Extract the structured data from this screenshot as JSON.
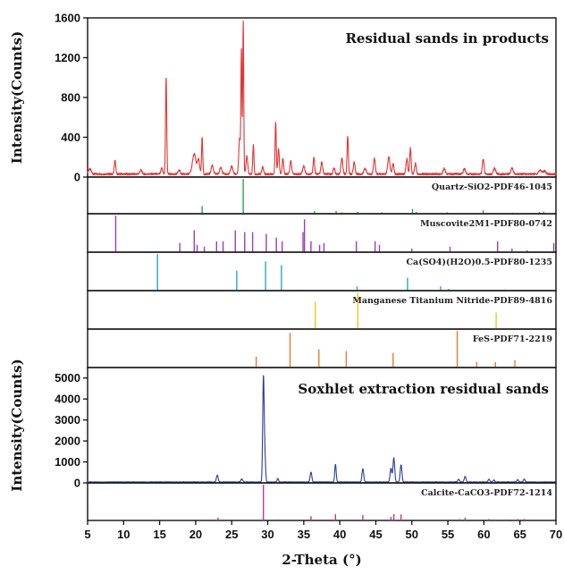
{
  "chart_data": {
    "type": "line",
    "xlabel": "2-Theta (°)",
    "xlim": [
      5,
      70
    ],
    "x_ticks": [
      5,
      10,
      15,
      20,
      25,
      30,
      35,
      40,
      45,
      50,
      55,
      60,
      65,
      70
    ],
    "top": {
      "title": "Residual sands in products",
      "ylabel": "Intensity(Counts)",
      "ylim": [
        0,
        1600
      ],
      "y_ticks": [
        0,
        400,
        800,
        1200,
        1600
      ],
      "color": "#e03535",
      "baseline": 30,
      "peaks": [
        [
          5.3,
          50,
          0.2
        ],
        [
          8.8,
          140,
          0.1
        ],
        [
          12.4,
          40,
          0.15
        ],
        [
          15.3,
          60,
          0.12
        ],
        [
          15.9,
          980,
          0.08
        ],
        [
          17.7,
          40,
          0.15
        ],
        [
          19.8,
          200,
          0.25
        ],
        [
          20.4,
          140,
          0.15
        ],
        [
          20.9,
          370,
          0.08
        ],
        [
          22.3,
          90,
          0.15
        ],
        [
          23.5,
          70,
          0.15
        ],
        [
          25.0,
          80,
          0.15
        ],
        [
          26.1,
          360,
          0.12
        ],
        [
          26.35,
          1240,
          0.07
        ],
        [
          26.6,
          1530,
          0.07
        ],
        [
          27.1,
          180,
          0.12
        ],
        [
          28.0,
          300,
          0.08
        ],
        [
          29.3,
          70,
          0.12
        ],
        [
          31.1,
          530,
          0.08
        ],
        [
          31.5,
          260,
          0.1
        ],
        [
          32.1,
          160,
          0.1
        ],
        [
          33.2,
          130,
          0.12
        ],
        [
          35.0,
          80,
          0.15
        ],
        [
          36.4,
          170,
          0.1
        ],
        [
          37.5,
          120,
          0.12
        ],
        [
          39.2,
          60,
          0.12
        ],
        [
          40.3,
          160,
          0.12
        ],
        [
          41.1,
          380,
          0.09
        ],
        [
          42.0,
          120,
          0.12
        ],
        [
          43.5,
          60,
          0.15
        ],
        [
          44.8,
          160,
          0.12
        ],
        [
          46.8,
          170,
          0.15
        ],
        [
          47.4,
          100,
          0.12
        ],
        [
          49.3,
          150,
          0.12
        ],
        [
          49.8,
          260,
          0.1
        ],
        [
          50.5,
          110,
          0.12
        ],
        [
          54.5,
          60,
          0.15
        ],
        [
          57.3,
          50,
          0.15
        ],
        [
          59.9,
          150,
          0.12
        ],
        [
          61.5,
          60,
          0.15
        ],
        [
          63.9,
          60,
          0.15
        ],
        [
          67.8,
          40,
          0.2
        ],
        [
          68.4,
          30,
          0.2
        ]
      ]
    },
    "references": [
      {
        "name": "Quartz-SiO2-PDF46-1045",
        "color": "#2aa84a",
        "sticks": [
          [
            20.9,
            0.22
          ],
          [
            26.6,
            1.0
          ],
          [
            36.5,
            0.08
          ],
          [
            39.5,
            0.08
          ],
          [
            40.3,
            0.04
          ],
          [
            42.5,
            0.06
          ],
          [
            45.8,
            0.04
          ],
          [
            50.1,
            0.14
          ],
          [
            50.6,
            0.05
          ],
          [
            54.9,
            0.04
          ],
          [
            59.9,
            0.1
          ],
          [
            64.0,
            0.03
          ],
          [
            67.7,
            0.05
          ],
          [
            68.3,
            0.06
          ]
        ]
      },
      {
        "name": "Muscovite2M1-PDF80-0742",
        "color": "#9b3fb5",
        "sticks": [
          [
            8.9,
            1.0
          ],
          [
            17.8,
            0.25
          ],
          [
            19.8,
            0.6
          ],
          [
            20.2,
            0.2
          ],
          [
            21.2,
            0.15
          ],
          [
            22.9,
            0.3
          ],
          [
            23.8,
            0.3
          ],
          [
            25.5,
            0.6
          ],
          [
            26.8,
            0.55
          ],
          [
            27.9,
            0.55
          ],
          [
            29.8,
            0.5
          ],
          [
            31.2,
            0.4
          ],
          [
            32.0,
            0.3
          ],
          [
            34.9,
            0.55
          ],
          [
            35.1,
            0.9
          ],
          [
            36.0,
            0.3
          ],
          [
            37.2,
            0.2
          ],
          [
            37.8,
            0.25
          ],
          [
            42.3,
            0.3
          ],
          [
            44.9,
            0.3
          ],
          [
            45.5,
            0.2
          ],
          [
            50.0,
            0.1
          ],
          [
            55.3,
            0.15
          ],
          [
            61.9,
            0.3
          ],
          [
            63.9,
            0.1
          ],
          [
            66.0,
            0.05
          ],
          [
            69.7,
            0.25
          ]
        ]
      },
      {
        "name": "Ca(SO4)(H2O)0.5-PDF80-1235",
        "color": "#29a6cc",
        "sticks": [
          [
            14.7,
            1.0
          ],
          [
            25.7,
            0.55
          ],
          [
            29.7,
            0.8
          ],
          [
            31.9,
            0.7
          ],
          [
            42.4,
            0.12
          ],
          [
            49.4,
            0.35
          ],
          [
            54.0,
            0.12
          ],
          [
            55.1,
            0.05
          ],
          [
            63.0,
            0.03
          ]
        ]
      },
      {
        "name": "Manganese Titanium Nitride-PDF89-4816",
        "color": "#f5c518",
        "sticks": [
          [
            36.6,
            0.75
          ],
          [
            42.5,
            1.0
          ],
          [
            61.7,
            0.45
          ]
        ]
      },
      {
        "name": "FeS-PDF71-2219",
        "color": "#ec7a2e",
        "sticks": [
          [
            28.4,
            0.3
          ],
          [
            33.1,
            0.95
          ],
          [
            37.1,
            0.5
          ],
          [
            40.9,
            0.45
          ],
          [
            47.4,
            0.4
          ],
          [
            56.3,
            1.0
          ],
          [
            59.0,
            0.15
          ],
          [
            61.6,
            0.15
          ],
          [
            64.3,
            0.2
          ]
        ]
      }
    ],
    "bottom": {
      "title": "Soxhlet extraction residual sands",
      "ylabel": "Intensity(Counts)",
      "ylim": [
        0,
        5500
      ],
      "y_ticks": [
        0,
        1000,
        2000,
        3000,
        4000,
        5000
      ],
      "color": "#2b3d98",
      "baseline": 40,
      "peaks": [
        [
          23.0,
          330,
          0.12
        ],
        [
          26.4,
          150,
          0.12
        ],
        [
          29.4,
          4950,
          0.1
        ],
        [
          29.6,
          1200,
          0.1
        ],
        [
          31.4,
          180,
          0.1
        ],
        [
          36.0,
          470,
          0.12
        ],
        [
          39.4,
          850,
          0.1
        ],
        [
          43.2,
          630,
          0.12
        ],
        [
          47.1,
          650,
          0.12
        ],
        [
          47.5,
          1150,
          0.12
        ],
        [
          48.5,
          820,
          0.12
        ],
        [
          56.5,
          130,
          0.12
        ],
        [
          57.4,
          270,
          0.12
        ],
        [
          60.7,
          140,
          0.12
        ],
        [
          61.4,
          90,
          0.12
        ],
        [
          64.7,
          110,
          0.12
        ],
        [
          65.6,
          130,
          0.12
        ]
      ]
    },
    "reference_bottom": {
      "name": "Calcite-CaCO3-PDF72-1214",
      "color": "#c0388a",
      "sticks": [
        [
          23.1,
          0.08
        ],
        [
          29.4,
          1.0
        ],
        [
          31.5,
          0.03
        ],
        [
          36.0,
          0.12
        ],
        [
          39.4,
          0.18
        ],
        [
          43.2,
          0.15
        ],
        [
          47.1,
          0.1
        ],
        [
          47.5,
          0.18
        ],
        [
          48.5,
          0.17
        ],
        [
          56.6,
          0.04
        ],
        [
          57.4,
          0.08
        ],
        [
          60.7,
          0.04
        ],
        [
          61.4,
          0.03
        ],
        [
          63.1,
          0.03
        ],
        [
          64.7,
          0.04
        ],
        [
          65.6,
          0.04
        ],
        [
          69.2,
          0.03
        ]
      ]
    }
  }
}
